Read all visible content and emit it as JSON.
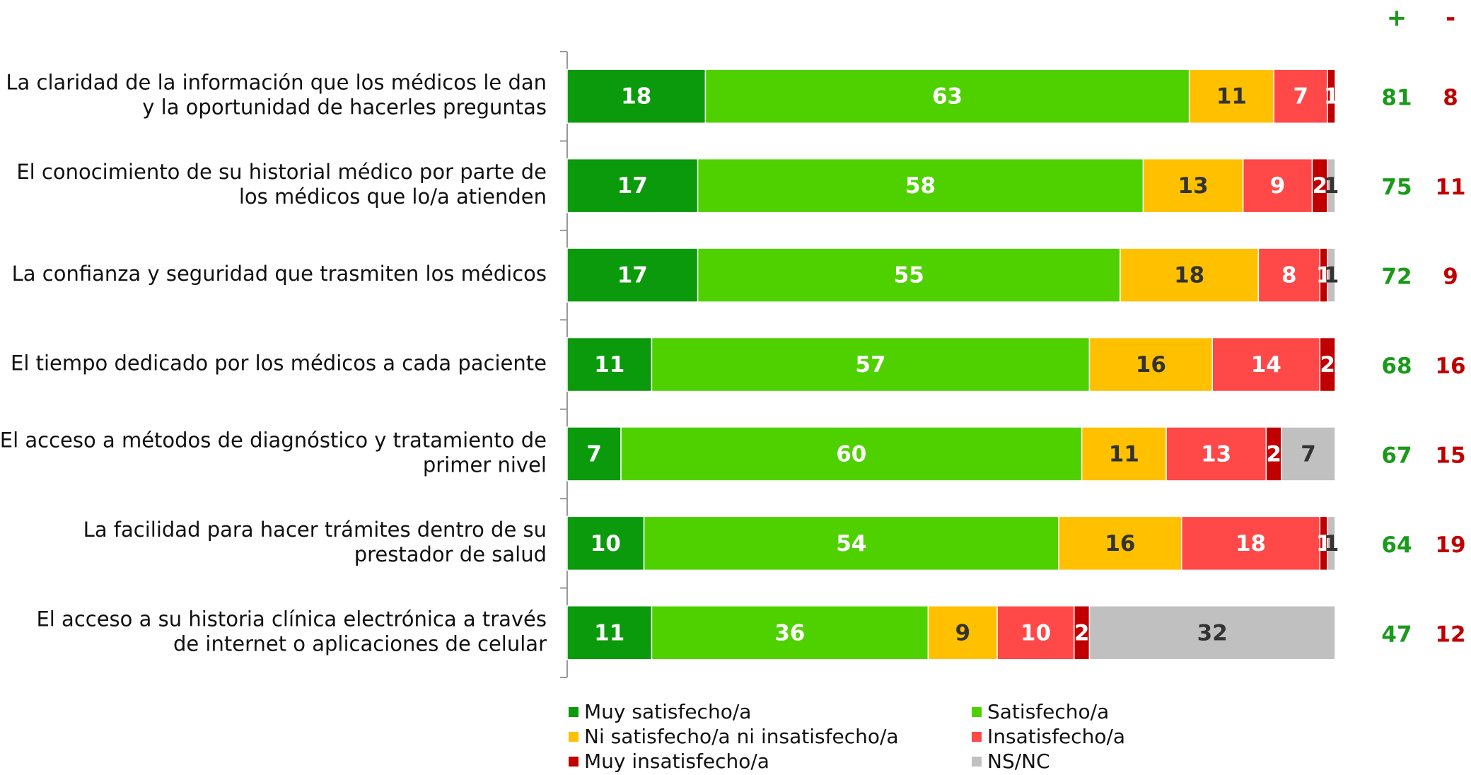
{
  "chart_data": {
    "type": "stacked-barh",
    "categories": [
      [
        "La claridad de la información que los médicos le dan",
        "y la oportunidad de hacerles preguntas"
      ],
      [
        "El conocimiento de su historial médico por parte de",
        "los médicos que lo/a atienden"
      ],
      [
        "La confianza y seguridad que trasmiten los médicos"
      ],
      [
        "El tiempo dedicado por los médicos a cada paciente"
      ],
      [
        "El acceso a métodos de diagnóstico y tratamiento de",
        "primer nivel"
      ],
      [
        "La facilidad para hacer trámites dentro de su",
        "prestador de salud"
      ],
      [
        "El acceso a su historia clínica electrónica  a través",
        "de internet o aplicaciones de celular"
      ]
    ],
    "series": [
      {
        "name": "Muy satisfecho/a",
        "color": "#0b9a0b",
        "label_color": "#ffffff",
        "values": [
          18,
          17,
          17,
          11,
          7,
          10,
          11
        ]
      },
      {
        "name": "Satisfecho/a",
        "color": "#4fd100",
        "label_color": "#ffffff",
        "values": [
          63,
          58,
          55,
          57,
          60,
          54,
          36
        ]
      },
      {
        "name": "Ni satisfecho/a ni insatisfecho/a",
        "color": "#ffc000",
        "label_color": "#333333",
        "values": [
          11,
          13,
          18,
          16,
          11,
          16,
          9
        ]
      },
      {
        "name": "Insatisfecho/a",
        "color": "#ff4848",
        "label_color": "#ffffff",
        "values": [
          7,
          9,
          8,
          14,
          13,
          18,
          10
        ]
      },
      {
        "name": "Muy insatisfecho/a",
        "color": "#c00000",
        "label_color": "#ffffff",
        "values": [
          1,
          2,
          1,
          2,
          2,
          1,
          2
        ]
      },
      {
        "name": "NS/NC",
        "color": "#c0c0c0",
        "label_color": "#333333",
        "values": [
          null,
          1,
          1,
          null,
          7,
          1,
          32
        ]
      }
    ],
    "xlim": [
      0,
      100
    ],
    "plus": {
      "header": "+",
      "color": "#1a9a1a",
      "values": [
        81,
        75,
        72,
        68,
        67,
        64,
        47
      ]
    },
    "minus": {
      "header": "-",
      "color": "#c00000",
      "values": [
        8,
        11,
        9,
        16,
        15,
        19,
        12
      ]
    }
  }
}
